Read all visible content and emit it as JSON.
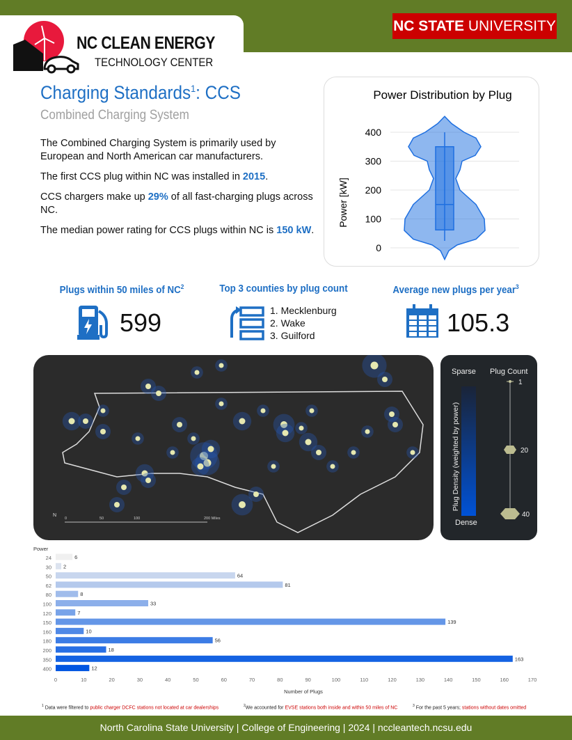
{
  "header": {
    "logo_title": "NC CLEAN ENERGY",
    "logo_subtitle": "TECHNOLOGY CENTER",
    "university_bold": "NC STATE",
    "university_light": "UNIVERSITY",
    "brand_color": "#617c26",
    "university_color": "#cc0000"
  },
  "intro": {
    "title": "Charging Standards",
    "title_sup": "1",
    "title_suffix": ": CCS",
    "subtitle": "Combined Charging System",
    "p1": "The Combined Charging System is primarily used by European and North American car manufacturers.",
    "p2_pre": "The first CCS plug within NC was installed in ",
    "p2_hl": "2015",
    "p2_post": ".",
    "p3_pre": "CCS chargers make up ",
    "p3_hl": "29%",
    "p3_post": " of all fast-charging plugs across NC.",
    "p4_pre": "The median power rating for CCS plugs within NC is ",
    "p4_hl": "150 kW",
    "p4_post": "."
  },
  "violin": {
    "type": "violin",
    "title": "Power Distribution by Plug",
    "ylabel": "Power [kW]",
    "yticks": [
      "0",
      "100",
      "200",
      "300",
      "400"
    ],
    "ylim": [
      0,
      400
    ],
    "box": {
      "min": 24,
      "q1": 62,
      "median": 150,
      "q3": 350,
      "max": 400
    },
    "color": "#1e6fe0"
  },
  "stats": {
    "plugs_label": "Plugs within 50 miles of NC",
    "plugs_sup": "2",
    "plugs_value": "599",
    "counties_label": "Top 3 counties by plug count",
    "counties": [
      "1. Mecklenburg",
      "2. Wake",
      "3. Guilford"
    ],
    "avg_label": "Average new plugs per year",
    "avg_sup": "3",
    "avg_value": "105.3",
    "icons": [
      "fuel-pump-icon",
      "ranking-list-icon",
      "calendar-icon"
    ]
  },
  "map": {
    "north": "N",
    "scale": [
      "0",
      "50",
      "100",
      "200 Miles"
    ]
  },
  "legend": {
    "sparse": "Sparse",
    "dense": "Dense",
    "density_label": "Plug Density (weighted by power)",
    "count_label": "Plug Count",
    "counts": [
      "1",
      "20",
      "40"
    ]
  },
  "chart_data": {
    "type": "bar",
    "orientation": "horizontal",
    "ylabel": "Power",
    "xlabel": "Number of Plugs",
    "categories": [
      "24",
      "30",
      "50",
      "62",
      "80",
      "100",
      "120",
      "150",
      "160",
      "180",
      "200",
      "350",
      "400"
    ],
    "values": [
      6,
      2,
      64,
      81,
      8,
      33,
      7,
      139,
      10,
      56,
      18,
      163,
      12
    ],
    "xlim": [
      0,
      170
    ],
    "xticks": [
      "0",
      "10",
      "20",
      "30",
      "40",
      "50",
      "60",
      "70",
      "80",
      "90",
      "100",
      "110",
      "120",
      "130",
      "140",
      "150",
      "160",
      "170"
    ],
    "grid": false
  },
  "footnotes": {
    "n1_sup": "1",
    "n1_pre": "Data were filtered to ",
    "n1_hl": "public charger DCFC stations not located at car dealerships",
    "n2_sup": "2",
    "n2_pre": "We accounted for ",
    "n2_hl": "EVSE stations both inside and within 50 miles of NC",
    "n3_sup": "3",
    "n3_pre": "For the past 5 years; ",
    "n3_hl": "stations without dates omitted"
  },
  "footer": "North Carolina State University | College of Engineering | 2024 | nccleantech.ncsu.edu"
}
